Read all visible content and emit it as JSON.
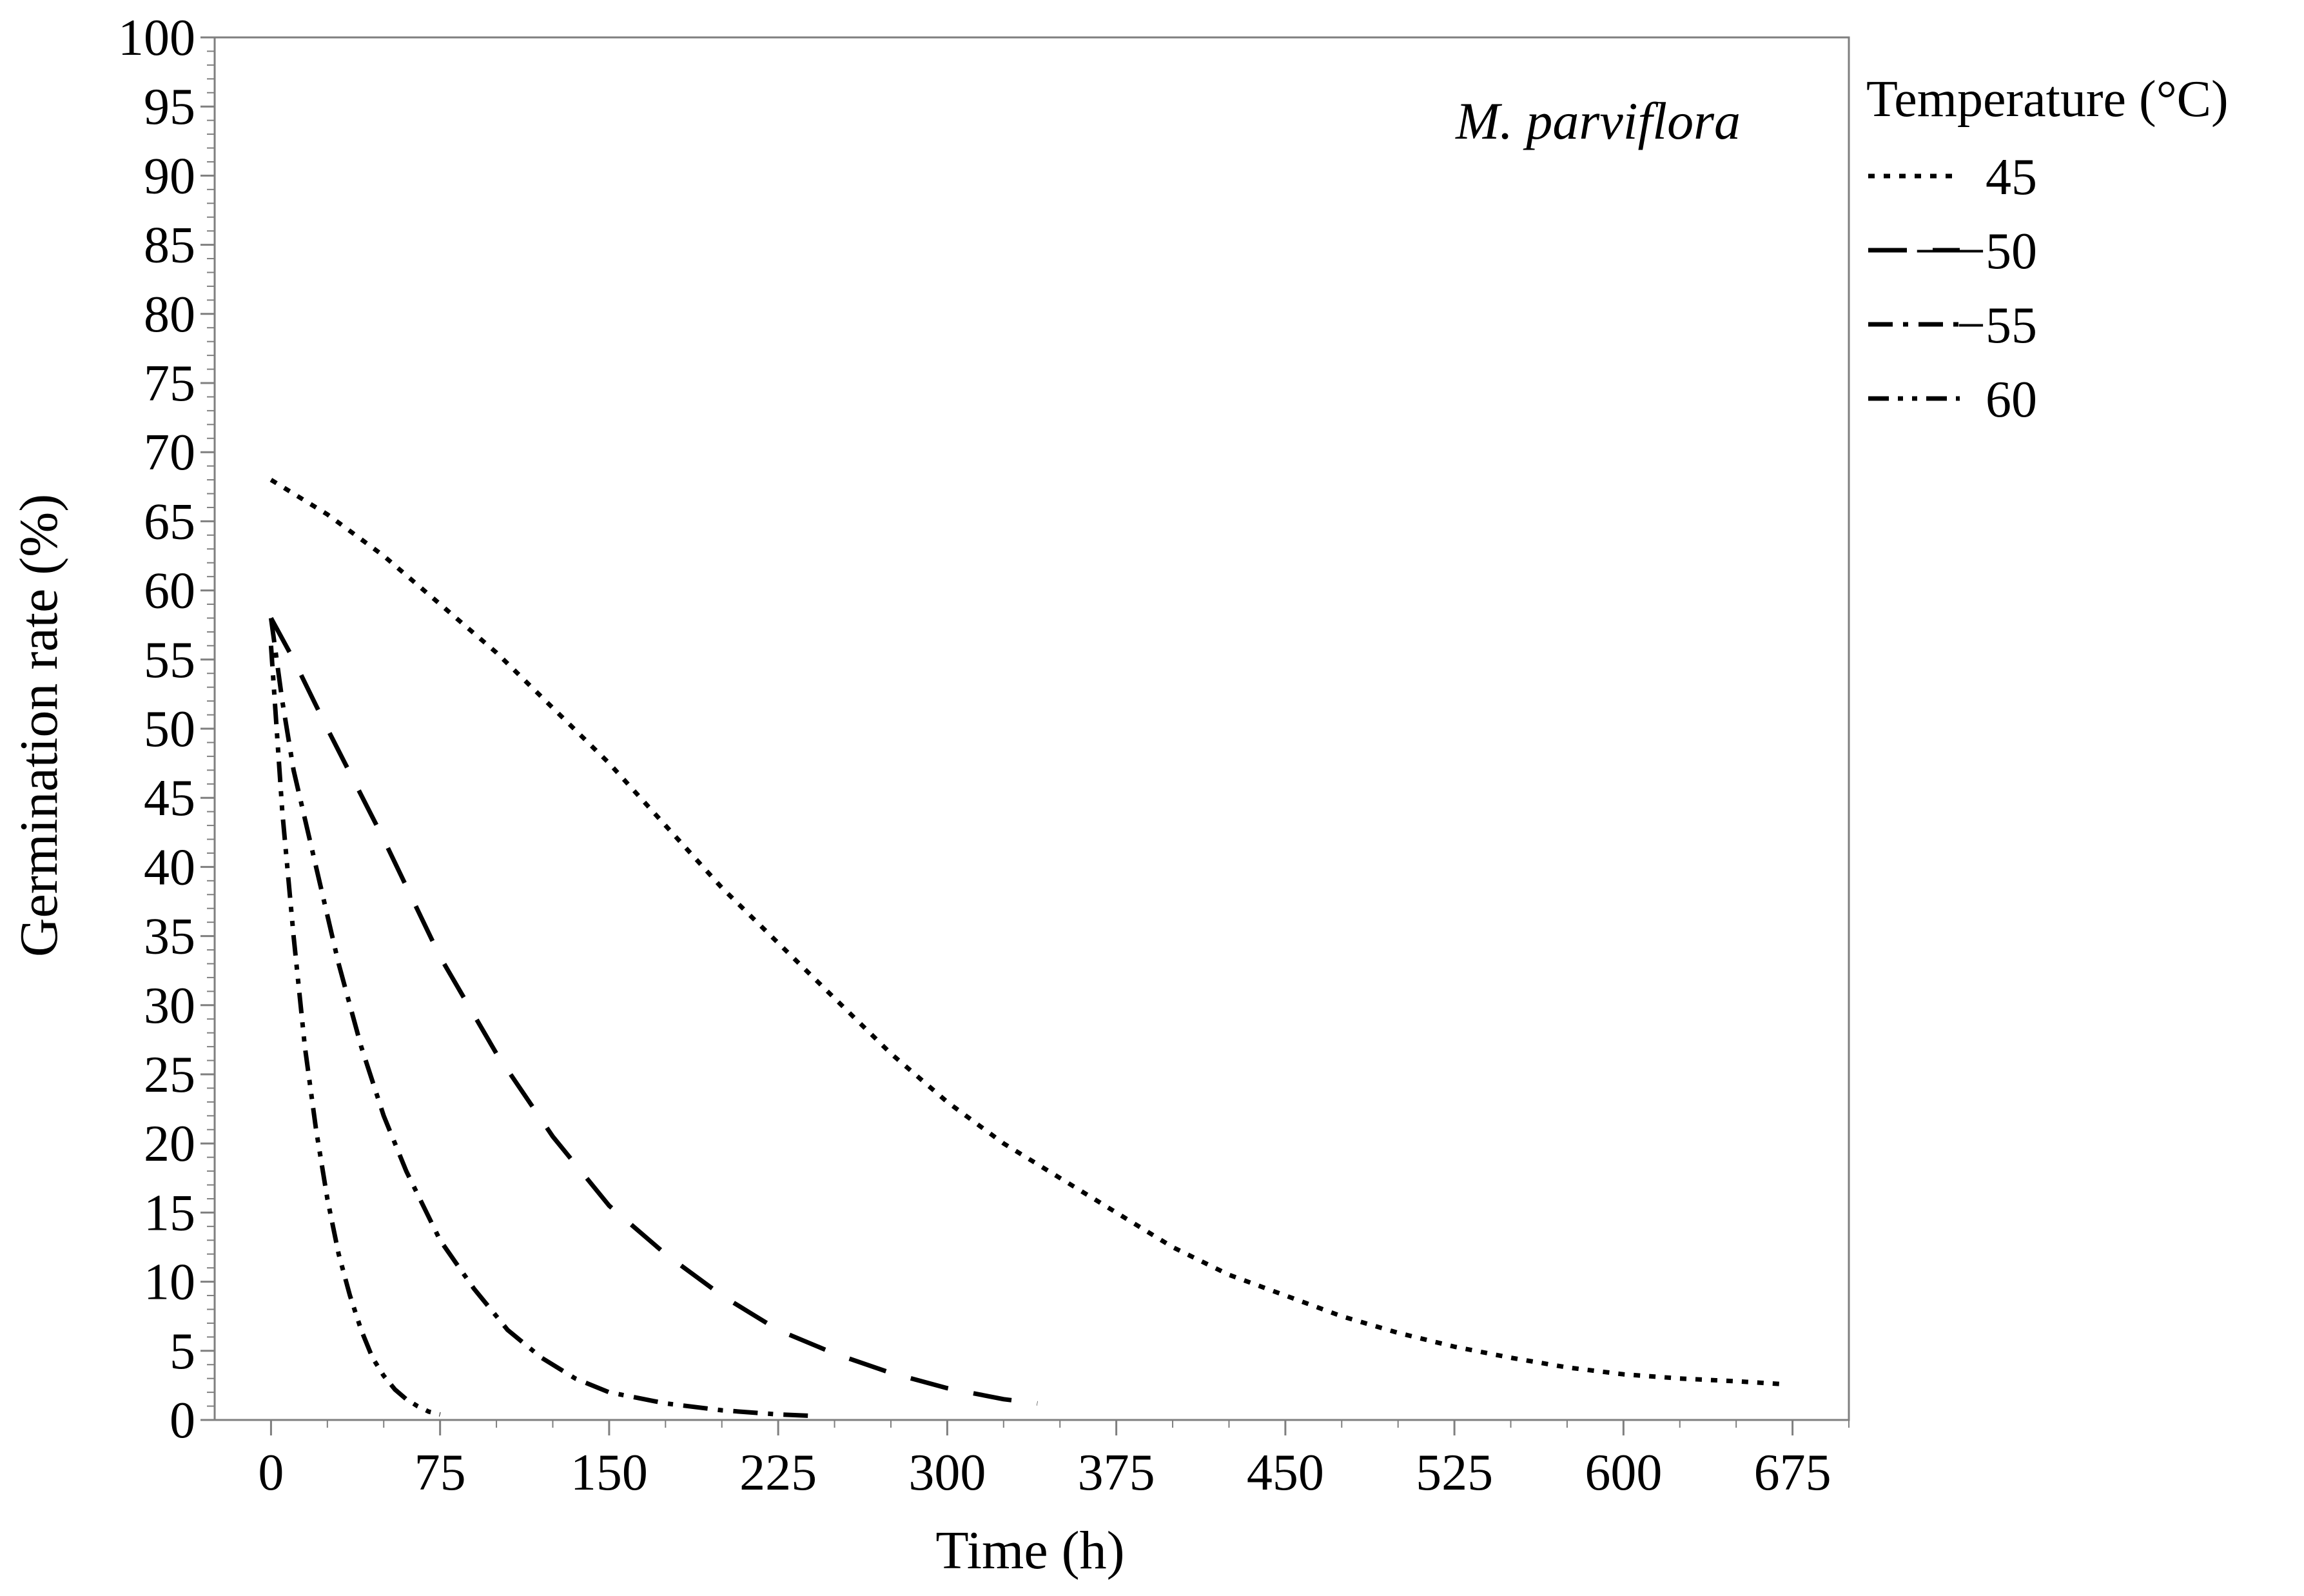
{
  "chart_data": {
    "type": "line",
    "title": "",
    "xlabel": "Time (h)",
    "ylabel": "Germination rate (%)",
    "xlim": [
      -25,
      700
    ],
    "ylim": [
      0,
      100
    ],
    "xticks": [
      0,
      75,
      150,
      225,
      300,
      375,
      450,
      525,
      600,
      675
    ],
    "yticks": [
      0,
      5,
      10,
      15,
      20,
      25,
      30,
      35,
      40,
      45,
      50,
      55,
      60,
      65,
      70,
      75,
      80,
      85,
      90,
      95,
      100
    ],
    "grid": false,
    "annotation": "M. parviflora",
    "legend": {
      "title": "Temperature (°C)",
      "placement": "right-outside-top"
    },
    "series": [
      {
        "name": "45",
        "legend_label": "45",
        "dash": "dotted",
        "x": [
          0,
          25,
          50,
          75,
          100,
          125,
          150,
          175,
          200,
          225,
          250,
          275,
          300,
          325,
          350,
          375,
          400,
          425,
          450,
          475,
          500,
          525,
          550,
          575,
          600,
          625,
          650,
          670
        ],
        "y": [
          68,
          65.5,
          62.5,
          59,
          55.5,
          51.5,
          47.5,
          43,
          38.5,
          34.5,
          30.5,
          26.5,
          23,
          20,
          17.5,
          15,
          12.5,
          10.5,
          9,
          7.5,
          6.3,
          5.3,
          4.5,
          3.8,
          3.3,
          3,
          2.8,
          2.6
        ]
      },
      {
        "name": "50",
        "legend_label": "− −50",
        "dash": "long-dash",
        "x": [
          0,
          10,
          25,
          50,
          75,
          100,
          125,
          150,
          175,
          200,
          225,
          250,
          275,
          300,
          325,
          340
        ],
        "y": [
          58,
          55,
          50,
          42,
          33.5,
          26.5,
          20.5,
          15.5,
          12,
          9,
          6.5,
          4.8,
          3.4,
          2.3,
          1.5,
          1.2
        ]
      },
      {
        "name": "55",
        "legend_label": "−55",
        "dash": "dash-dot",
        "x": [
          0,
          5,
          10,
          20,
          30,
          40,
          50,
          60,
          75,
          90,
          105,
          120,
          135,
          150,
          175,
          200,
          225,
          240
        ],
        "y": [
          58,
          52,
          47,
          40,
          33,
          27,
          22,
          18,
          13,
          9.5,
          6.5,
          4.5,
          3,
          2,
          1.2,
          0.7,
          0.4,
          0.3
        ]
      },
      {
        "name": "60",
        "legend_label": "60",
        "dash": "dash-dot-dot",
        "x": [
          0,
          5,
          10,
          15,
          20,
          25,
          30,
          35,
          40,
          45,
          50,
          55,
          60,
          65,
          70,
          75
        ],
        "y": [
          56,
          44,
          35,
          27,
          21,
          16,
          12,
          9,
          6.5,
          4.5,
          3.2,
          2.2,
          1.5,
          1,
          0.6,
          0.4
        ]
      }
    ]
  }
}
